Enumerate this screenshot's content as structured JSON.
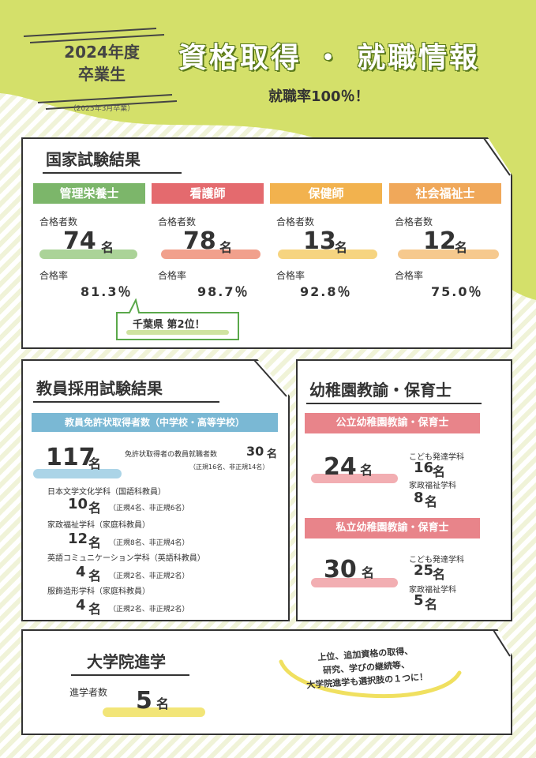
{
  "header": {
    "year_line1": "2024年度",
    "year_line2": "卒業生",
    "year_sub": "（2025年3月卒業）",
    "title": "資格取得 ・ 就職情報",
    "employment_rate": "就職率100％！"
  },
  "national_exam": {
    "title": "国家試験結果",
    "passers_label": "合格者数",
    "rate_label": "合格率",
    "unit": "名",
    "items": [
      {
        "name": "管理栄養士",
        "count": "74",
        "rate": "81.3％",
        "color": "#7cb66a"
      },
      {
        "name": "看護師",
        "count": "78",
        "rate": "98.7％",
        "color": "#e46a6e"
      },
      {
        "name": "保健師",
        "count": "13",
        "rate": "92.8％",
        "color": "#f2b24e"
      },
      {
        "name": "社会福祉士",
        "count": "12",
        "rate": "75.0％",
        "color": "#f0a85a"
      }
    ],
    "callout": "千葉県 第2位！"
  },
  "teacher_exam": {
    "title": "教員採用試験結果",
    "band": "教員免許状取得者数（中学校・高等学校）",
    "total_count": "117",
    "unit": "名",
    "hired_label": "免許状取得者の教員就職者数",
    "hired_count": "30",
    "hired_note": "（正規16名、非正規14名）",
    "departments": [
      {
        "name": "日本文学文化学科（国語科教員）",
        "count": "10",
        "note": "（正規4名、非正規6名）"
      },
      {
        "name": "家政福祉学科（家庭科教員）",
        "count": "12",
        "note": "（正規8名、非正規4名）"
      },
      {
        "name": "英語コミュニケーション学科（英語科教員）",
        "count": "4",
        "note": "（正規2名、非正規2名）"
      },
      {
        "name": "服飾造形学科（家庭科教員）",
        "count": "4",
        "note": "（正規2名、非正規2名）"
      }
    ]
  },
  "kindergarten": {
    "title": "幼稚園教諭・保育士",
    "unit": "名",
    "public": {
      "band": "公立幼稚園教諭・保育士",
      "total": "24",
      "dept1_name": "こども発達学科",
      "dept1_count": "16",
      "dept2_name": "家政福祉学科",
      "dept2_count": "8"
    },
    "private": {
      "band": "私立幼稚園教諭・保育士",
      "total": "30",
      "dept1_name": "こども発達学科",
      "dept1_count": "25",
      "dept2_name": "家政福祉学科",
      "dept2_count": "5"
    }
  },
  "graduate": {
    "title": "大学院進学",
    "label": "進学者数",
    "count": "5",
    "unit": "名",
    "bubble_line1": "上位、追加資格の取得、",
    "bubble_line2": "研究、学びの継続等、",
    "bubble_line3": "大学院進学も選択肢の１つに！"
  },
  "colors": {
    "lime": "#d4e06a",
    "blue_band": "#7ab8d4",
    "pink_band": "#e8848a"
  }
}
